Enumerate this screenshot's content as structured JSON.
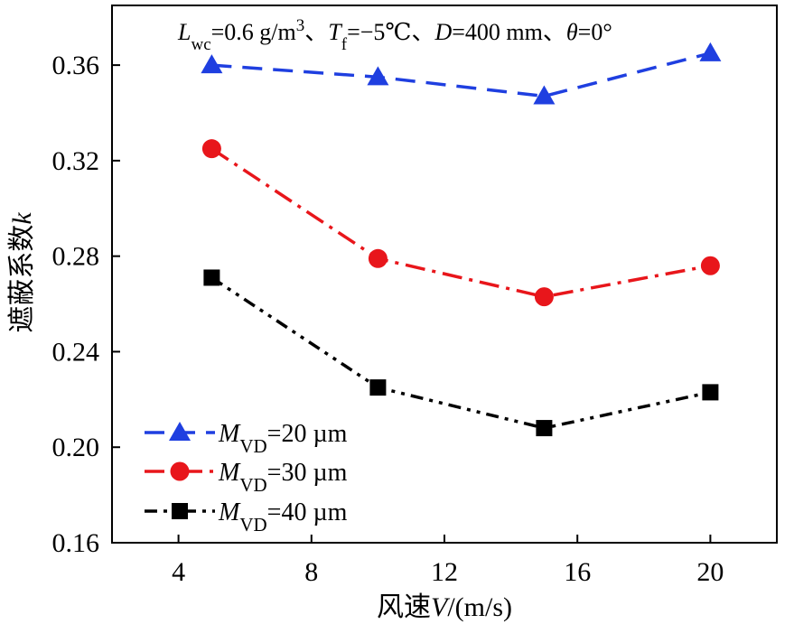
{
  "chart_data": {
    "type": "line",
    "title": {
      "parts": [
        {
          "t": "L",
          "style": "italic"
        },
        {
          "t": "wc",
          "style": "sub"
        },
        {
          "t": "=0.6 g/m",
          "style": "normal"
        },
        {
          "t": "3",
          "style": "sup"
        },
        {
          "t": "、",
          "style": "normal"
        },
        {
          "t": "T",
          "style": "italic"
        },
        {
          "t": "f",
          "style": "sub"
        },
        {
          "t": "=−5℃、",
          "style": "normal"
        },
        {
          "t": "D",
          "style": "italic"
        },
        {
          "t": "=400 mm、",
          "style": "normal"
        },
        {
          "t": "θ",
          "style": "italic"
        },
        {
          "t": "=0°",
          "style": "normal"
        }
      ]
    },
    "xlabel": {
      "prefix": "风速",
      "var": "V",
      "suffix": "/(m/s)"
    },
    "ylabel": {
      "prefix": "遮蔽系数",
      "var": "k"
    },
    "xlim": [
      2,
      22
    ],
    "ylim": [
      0.16,
      0.385
    ],
    "xticks": [
      4,
      8,
      12,
      16,
      20
    ],
    "xtick_labels": [
      "4",
      "8",
      "12",
      "16",
      "20"
    ],
    "yticks": [
      0.16,
      0.2,
      0.24,
      0.28,
      0.32,
      0.36
    ],
    "ytick_labels": [
      "0.16",
      "0.20",
      "0.24",
      "0.28",
      "0.32",
      "0.36"
    ],
    "grid": false,
    "legend_position": "bottom-left",
    "x": [
      5,
      10,
      15,
      20
    ],
    "series": [
      {
        "name": "MVD=20 µm",
        "label_var": "M",
        "label_sub": "VD",
        "label_rest": "=20 µm",
        "values": [
          0.36,
          0.355,
          0.347,
          0.365
        ],
        "color": "#1f3fe0",
        "marker": "triangle",
        "dash": "22 12"
      },
      {
        "name": "MVD=30 µm",
        "label_var": "M",
        "label_sub": "VD",
        "label_rest": "=30 µm",
        "values": [
          0.325,
          0.279,
          0.263,
          0.276
        ],
        "color": "#e8161b",
        "marker": "circle",
        "dash": "22 8 4 8"
      },
      {
        "name": "MVD=40 µm",
        "label_var": "M",
        "label_sub": "VD",
        "label_rest": "=40 µm",
        "values": [
          0.271,
          0.225,
          0.208,
          0.223
        ],
        "color": "#000000",
        "marker": "square",
        "dash": "14 7 4 7 4 7"
      }
    ]
  }
}
